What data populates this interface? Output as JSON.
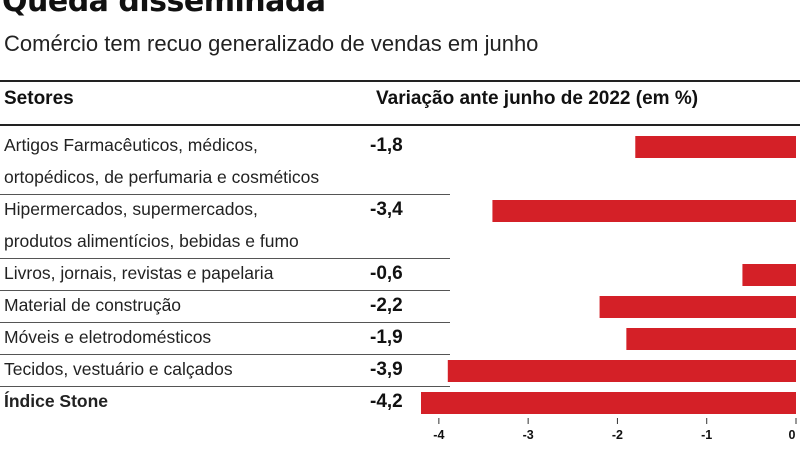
{
  "header": {
    "title": "Queda disseminada",
    "subtitle": "Comércio tem recuo generalizado de vendas em junho",
    "col_sectors": "Setores",
    "col_variation": "Variação ante junho de 2022 (em %)"
  },
  "chart_data": {
    "type": "bar",
    "orientation": "horizontal",
    "categories": [
      [
        "Artigos Farmacêuticos, médicos,",
        "ortopédicos, de perfumaria e cosméticos"
      ],
      [
        "Hipermercados, supermercados,",
        "produtos alimentícios, bebidas e fumo"
      ],
      [
        "Livros, jornais, revistas e papelaria"
      ],
      [
        "Material de construção"
      ],
      [
        "Móveis e eletrodomésticos"
      ],
      [
        "Tecidos, vestuário e calçados"
      ],
      [
        "Índice Stone"
      ]
    ],
    "values": [
      -1.8,
      -3.4,
      -0.6,
      -2.2,
      -1.9,
      -3.9,
      -4.2
    ],
    "value_labels": [
      "-1,8",
      "-3,4",
      "-0,6",
      "-2,2",
      "-1,9",
      "-3,9",
      "-4,2"
    ],
    "highlight_last": true,
    "xlim": [
      -4.2,
      0
    ],
    "xticks": [
      -4,
      -3,
      -2,
      -1,
      0
    ],
    "xtick_labels": [
      "-4",
      "-3",
      "-2",
      "-1",
      "0"
    ],
    "bar_color": "#d42027",
    "grid": false,
    "legend": "none"
  }
}
